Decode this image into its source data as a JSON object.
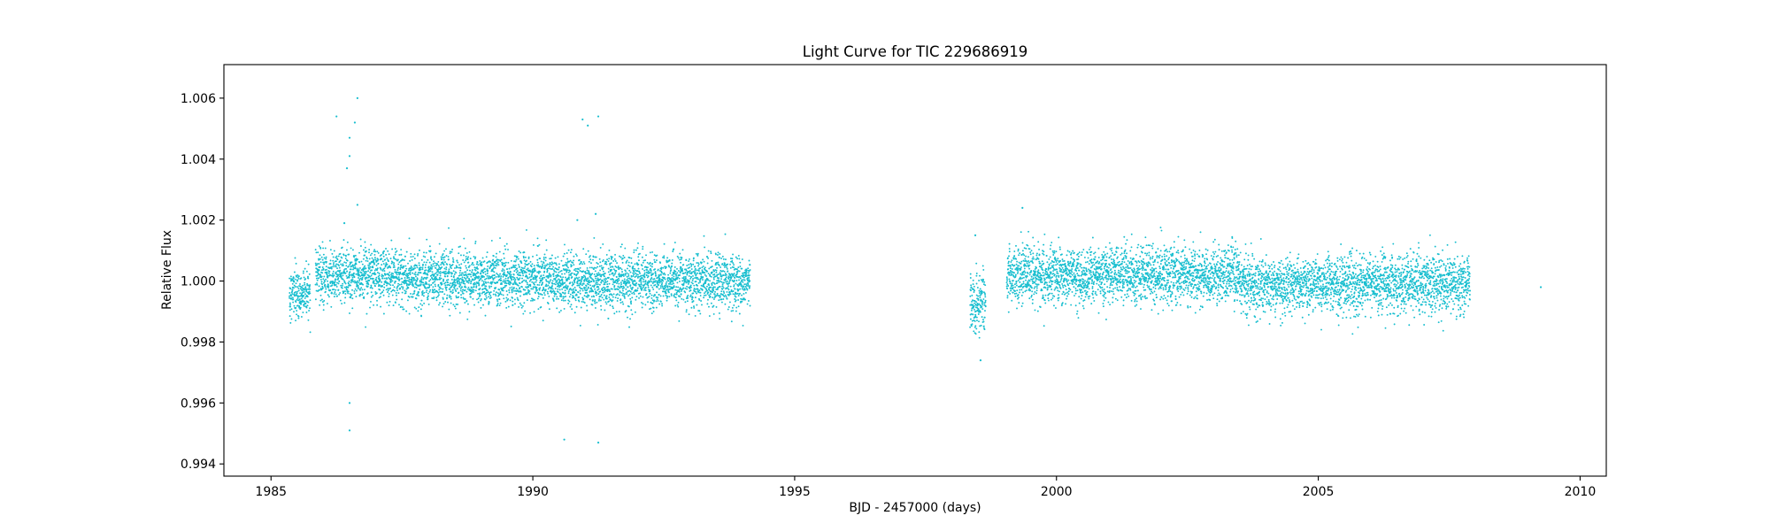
{
  "chart_data": {
    "type": "scatter",
    "title": "Light Curve for TIC 229686919",
    "xlabel": "BJD - 2457000 (days)",
    "ylabel": "Relative Flux",
    "xlim": [
      1984.1,
      2010.5
    ],
    "ylim": [
      0.9936,
      1.0071
    ],
    "x_ticks": [
      1985,
      1990,
      1995,
      2000,
      2005,
      2010
    ],
    "x_tick_labels": [
      "1985",
      "1990",
      "1995",
      "2000",
      "2005",
      "2010"
    ],
    "y_ticks": [
      0.994,
      0.996,
      0.998,
      1.0,
      1.002,
      1.004,
      1.006
    ],
    "y_tick_labels": [
      "0.994",
      "0.996",
      "0.998",
      "1.000",
      "1.002",
      "1.004",
      "1.006"
    ],
    "grid": false,
    "series": [
      {
        "color": "#17becf",
        "dense_segments": [
          {
            "x_start": 1985.35,
            "x_end": 1985.75,
            "mean": 0.9996,
            "scatter": 0.0004
          },
          {
            "x_start": 1985.85,
            "x_end": 1987.5,
            "mean": 1.0002,
            "scatter": 0.00045
          },
          {
            "x_start": 1987.5,
            "x_end": 1990.5,
            "mean": 1.0001,
            "scatter": 0.00045
          },
          {
            "x_start": 1990.5,
            "x_end": 1994.15,
            "mean": 1.0,
            "scatter": 0.00045
          },
          {
            "x_start": 1998.35,
            "x_end": 1998.65,
            "mean": 0.9993,
            "scatter": 0.0005
          },
          {
            "x_start": 1999.05,
            "x_end": 2003.5,
            "mean": 1.0002,
            "scatter": 0.00045
          },
          {
            "x_start": 2003.5,
            "x_end": 2007.9,
            "mean": 0.9999,
            "scatter": 0.00045
          }
        ],
        "outliers": [
          {
            "x": 1986.25,
            "y": 1.0054
          },
          {
            "x": 1986.5,
            "y": 1.0047
          },
          {
            "x": 1986.5,
            "y": 1.0041
          },
          {
            "x": 1986.45,
            "y": 1.0037
          },
          {
            "x": 1986.65,
            "y": 1.006
          },
          {
            "x": 1986.6,
            "y": 1.0052
          },
          {
            "x": 1986.65,
            "y": 1.0025
          },
          {
            "x": 1986.4,
            "y": 1.0019
          },
          {
            "x": 1986.5,
            "y": 0.996
          },
          {
            "x": 1986.5,
            "y": 0.9951
          },
          {
            "x": 1990.95,
            "y": 1.0053
          },
          {
            "x": 1991.05,
            "y": 1.0051
          },
          {
            "x": 1991.25,
            "y": 1.0054
          },
          {
            "x": 1990.6,
            "y": 0.9948
          },
          {
            "x": 1991.25,
            "y": 0.9947
          },
          {
            "x": 1991.2,
            "y": 1.0022
          },
          {
            "x": 1990.85,
            "y": 1.002
          },
          {
            "x": 1998.55,
            "y": 0.9974
          },
          {
            "x": 1998.45,
            "y": 1.0015
          },
          {
            "x": 1999.35,
            "y": 1.0024
          },
          {
            "x": 2009.25,
            "y": 0.9998
          }
        ]
      }
    ]
  }
}
